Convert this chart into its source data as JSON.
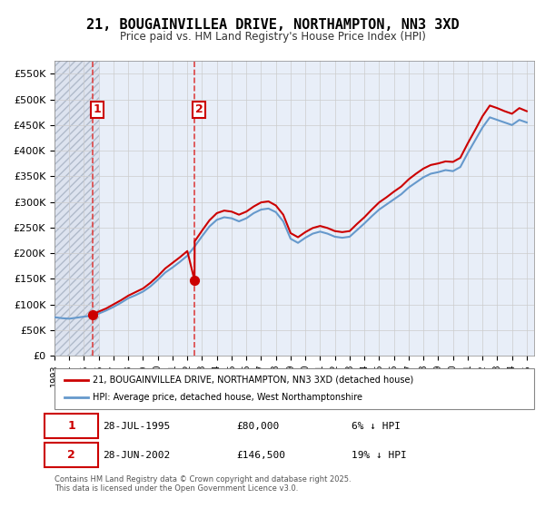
{
  "title": "21, BOUGAINVILLEA DRIVE, NORTHAMPTON, NN3 3XD",
  "subtitle": "Price paid vs. HM Land Registry's House Price Index (HPI)",
  "legend_label_red": "21, BOUGAINVILLEA DRIVE, NORTHAMPTON, NN3 3XD (detached house)",
  "legend_label_blue": "HPI: Average price, detached house, West Northamptonshire",
  "footer": "Contains HM Land Registry data © Crown copyright and database right 2025.\nThis data is licensed under the Open Government Licence v3.0.",
  "purchase1_date": "28-JUL-1995",
  "purchase1_price": 80000,
  "purchase1_label": "6% ↓ HPI",
  "purchase2_date": "28-JUN-2002",
  "purchase2_price": 146500,
  "purchase2_label": "19% ↓ HPI",
  "purchase1_year": 1995.57,
  "purchase2_year": 2002.49,
  "ylim": [
    0,
    575000
  ],
  "yticks": [
    0,
    50000,
    100000,
    150000,
    200000,
    250000,
    300000,
    350000,
    400000,
    450000,
    500000,
    550000
  ],
  "ytick_labels": [
    "£0",
    "£50K",
    "£100K",
    "£150K",
    "£200K",
    "£250K",
    "£300K",
    "£350K",
    "£400K",
    "£450K",
    "£500K",
    "£550K"
  ],
  "xlim_start": 1993.0,
  "xlim_end": 2025.5,
  "background_hatch_color": "#c8d0e0",
  "background_end_year": 1996.0,
  "grid_color": "#cccccc",
  "red_line_color": "#cc0000",
  "blue_line_color": "#6699cc",
  "dashed_line_color": "#dd4444",
  "hpi_data": {
    "years": [
      1993.0,
      1993.5,
      1994.0,
      1994.5,
      1995.0,
      1995.5,
      1996.0,
      1996.5,
      1997.0,
      1997.5,
      1998.0,
      1998.5,
      1999.0,
      1999.5,
      2000.0,
      2000.5,
      2001.0,
      2001.5,
      2002.0,
      2002.5,
      2003.0,
      2003.5,
      2004.0,
      2004.5,
      2005.0,
      2005.5,
      2006.0,
      2006.5,
      2007.0,
      2007.5,
      2008.0,
      2008.5,
      2009.0,
      2009.5,
      2010.0,
      2010.5,
      2011.0,
      2011.5,
      2012.0,
      2012.5,
      2013.0,
      2013.5,
      2014.0,
      2014.5,
      2015.0,
      2015.5,
      2016.0,
      2016.5,
      2017.0,
      2017.5,
      2018.0,
      2018.5,
      2019.0,
      2019.5,
      2020.0,
      2020.5,
      2021.0,
      2021.5,
      2022.0,
      2022.5,
      2023.0,
      2023.5,
      2024.0,
      2024.5,
      2025.0
    ],
    "values": [
      75000,
      73000,
      72000,
      74000,
      76000,
      78000,
      82000,
      88000,
      95000,
      103000,
      112000,
      118000,
      125000,
      135000,
      148000,
      162000,
      172000,
      183000,
      195000,
      213000,
      233000,
      252000,
      265000,
      270000,
      268000,
      262000,
      268000,
      278000,
      285000,
      287000,
      280000,
      262000,
      228000,
      220000,
      230000,
      238000,
      242000,
      238000,
      232000,
      230000,
      232000,
      245000,
      258000,
      272000,
      285000,
      295000,
      305000,
      315000,
      328000,
      338000,
      348000,
      355000,
      358000,
      362000,
      360000,
      368000,
      395000,
      420000,
      445000,
      465000,
      460000,
      455000,
      450000,
      460000,
      455000
    ]
  },
  "red_data": {
    "years": [
      1995.57,
      1995.6,
      1995.8,
      1996.0,
      1996.5,
      1997.0,
      1997.5,
      1998.0,
      1998.5,
      1999.0,
      1999.5,
      2000.0,
      2000.5,
      2001.0,
      2001.5,
      2002.0,
      2002.49,
      2002.5,
      2003.0,
      2003.5,
      2004.0,
      2004.5,
      2005.0,
      2005.5,
      2006.0,
      2006.5,
      2007.0,
      2007.5,
      2008.0,
      2008.5,
      2009.0,
      2009.5,
      2010.0,
      2010.5,
      2011.0,
      2011.5,
      2012.0,
      2012.5,
      2013.0,
      2013.5,
      2014.0,
      2014.5,
      2015.0,
      2015.5,
      2016.0,
      2016.5,
      2017.0,
      2017.5,
      2018.0,
      2018.5,
      2019.0,
      2019.5,
      2020.0,
      2020.5,
      2021.0,
      2021.5,
      2022.0,
      2022.5,
      2023.0,
      2023.5,
      2024.0,
      2024.5,
      2025.0
    ],
    "values": [
      80000,
      81000,
      83000,
      86000,
      92000,
      100000,
      108000,
      117000,
      124000,
      131000,
      142000,
      155000,
      170000,
      181000,
      192000,
      204000,
      146500,
      223000,
      244000,
      264000,
      278000,
      283000,
      281000,
      275000,
      281000,
      291000,
      299000,
      301000,
      293000,
      275000,
      239000,
      231000,
      241000,
      249000,
      253000,
      249000,
      243000,
      241000,
      243000,
      257000,
      270000,
      285000,
      299000,
      309000,
      320000,
      330000,
      344000,
      355000,
      365000,
      372000,
      375000,
      379000,
      378000,
      386000,
      414000,
      440000,
      467000,
      488000,
      483000,
      477000,
      472000,
      483000,
      477000
    ]
  }
}
